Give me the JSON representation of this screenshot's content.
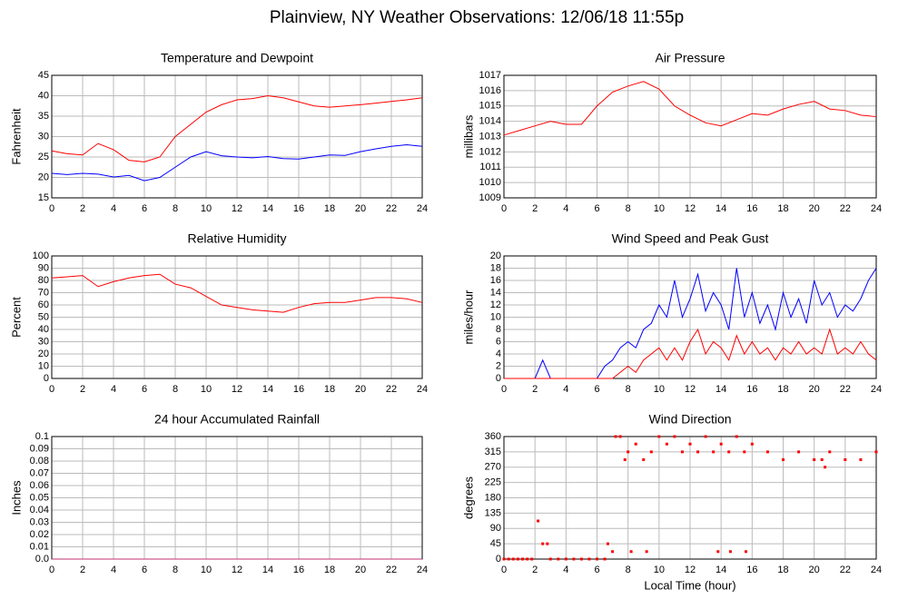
{
  "title": "Plainview, NY Weather Observations: 12/06/18 11:55p",
  "chart_data": [
    {
      "type": "line",
      "title": "Temperature and Dewpoint",
      "ylabel": "Fahrenheit",
      "x": [
        0,
        1,
        2,
        3,
        4,
        5,
        6,
        7,
        8,
        9,
        10,
        11,
        12,
        13,
        14,
        15,
        16,
        17,
        18,
        19,
        20,
        21,
        22,
        23,
        24
      ],
      "series": [
        {
          "name": "Temperature",
          "color": "#ff0000",
          "values": [
            26.5,
            25.8,
            25.5,
            28.3,
            26.8,
            24.2,
            23.8,
            25,
            30,
            33,
            36,
            37.8,
            39,
            39.3,
            40,
            39.5,
            38.5,
            37.5,
            37.2,
            37.5,
            37.8,
            38.2,
            38.6,
            39,
            39.5
          ]
        },
        {
          "name": "Dewpoint",
          "color": "#0000ff",
          "values": [
            21,
            20.7,
            21,
            20.8,
            20.1,
            20.5,
            19.2,
            20,
            22.5,
            25,
            26.3,
            25.3,
            25,
            24.8,
            25.1,
            24.6,
            24.5,
            25,
            25.5,
            25.4,
            26.3,
            27,
            27.6,
            28,
            27.6
          ]
        }
      ],
      "xlim": [
        0,
        24
      ],
      "xticks": [
        0,
        2,
        4,
        6,
        8,
        10,
        12,
        14,
        16,
        18,
        20,
        22,
        24
      ],
      "ylim": [
        15,
        45
      ],
      "yticks": [
        15,
        20,
        25,
        30,
        35,
        40,
        45
      ],
      "grid": true
    },
    {
      "type": "line",
      "title": "Air Pressure",
      "ylabel": "millibars",
      "x": [
        0,
        1,
        2,
        3,
        4,
        5,
        6,
        7,
        8,
        9,
        10,
        11,
        12,
        13,
        14,
        15,
        16,
        17,
        18,
        19,
        20,
        21,
        22,
        23,
        24
      ],
      "series": [
        {
          "name": "Pressure",
          "color": "#ff0000",
          "values": [
            1013.1,
            1013.4,
            1013.7,
            1014,
            1013.8,
            1013.8,
            1015,
            1015.9,
            1016.3,
            1016.6,
            1016.1,
            1015,
            1014.4,
            1013.9,
            1013.7,
            1014.1,
            1014.5,
            1014.4,
            1014.8,
            1015.1,
            1015.3,
            1014.8,
            1014.7,
            1014.4,
            1014.3
          ]
        }
      ],
      "xlim": [
        0,
        24
      ],
      "xticks": [
        0,
        2,
        4,
        6,
        8,
        10,
        12,
        14,
        16,
        18,
        20,
        22,
        24
      ],
      "ylim": [
        1009,
        1017
      ],
      "yticks": [
        1009,
        1010,
        1011,
        1012,
        1013,
        1014,
        1015,
        1016,
        1017
      ],
      "grid": true
    },
    {
      "type": "line",
      "title": "Relative Humidity",
      "ylabel": "Percent",
      "x": [
        0,
        1,
        2,
        3,
        4,
        5,
        6,
        7,
        8,
        9,
        10,
        11,
        12,
        13,
        14,
        15,
        16,
        17,
        18,
        19,
        20,
        21,
        22,
        23,
        24
      ],
      "series": [
        {
          "name": "Humidity",
          "color": "#ff0000",
          "values": [
            82,
            83,
            84,
            75,
            79,
            82,
            84,
            85,
            77,
            74,
            67,
            60,
            58,
            56,
            55,
            54,
            58,
            61,
            62,
            62,
            64,
            66,
            66,
            65,
            62
          ]
        }
      ],
      "xlim": [
        0,
        24
      ],
      "xticks": [
        0,
        2,
        4,
        6,
        8,
        10,
        12,
        14,
        16,
        18,
        20,
        22,
        24
      ],
      "ylim": [
        0,
        100
      ],
      "yticks": [
        0,
        10,
        20,
        30,
        40,
        50,
        60,
        70,
        80,
        90,
        100
      ],
      "grid": true
    },
    {
      "type": "line",
      "title": "Wind Speed and Peak Gust",
      "ylabel": "miles/hour",
      "x": [
        0,
        0.5,
        1,
        1.5,
        2,
        2.5,
        3,
        3.5,
        4,
        4.5,
        5,
        5.5,
        6,
        6.5,
        7,
        7.5,
        8,
        8.5,
        9,
        9.5,
        10,
        10.5,
        11,
        11.5,
        12,
        12.5,
        13,
        13.5,
        14,
        14.5,
        15,
        15.5,
        16,
        16.5,
        17,
        17.5,
        18,
        18.5,
        19,
        19.5,
        20,
        20.5,
        21,
        21.5,
        22,
        22.5,
        23,
        23.5,
        24
      ],
      "series": [
        {
          "name": "Peak Gust",
          "color": "#0000ff",
          "values": [
            0,
            0,
            0,
            0,
            0,
            3,
            0,
            0,
            0,
            0,
            0,
            0,
            0,
            2,
            3,
            5,
            6,
            5,
            8,
            9,
            12,
            10,
            16,
            10,
            13,
            17,
            11,
            14,
            12,
            8,
            18,
            10,
            14,
            9,
            12,
            8,
            14,
            10,
            13,
            9,
            16,
            12,
            14,
            10,
            12,
            11,
            13,
            16,
            18
          ]
        },
        {
          "name": "Wind Speed",
          "color": "#ff0000",
          "values": [
            0,
            0,
            0,
            0,
            0,
            0,
            0,
            0,
            0,
            0,
            0,
            0,
            0,
            0,
            0,
            1,
            2,
            1,
            3,
            4,
            5,
            3,
            5,
            3,
            6,
            8,
            4,
            6,
            5,
            3,
            7,
            4,
            6,
            4,
            5,
            3,
            5,
            4,
            6,
            4,
            5,
            4,
            8,
            4,
            5,
            4,
            6,
            4,
            3
          ]
        }
      ],
      "xlim": [
        0,
        24
      ],
      "xticks": [
        0,
        2,
        4,
        6,
        8,
        10,
        12,
        14,
        16,
        18,
        20,
        22,
        24
      ],
      "ylim": [
        0,
        20
      ],
      "yticks": [
        0,
        2,
        4,
        6,
        8,
        10,
        12,
        14,
        16,
        18,
        20
      ],
      "grid": true
    },
    {
      "type": "line",
      "title": "24 hour Accumulated Rainfall",
      "ylabel": "Inches",
      "x": [
        0,
        24
      ],
      "series": [
        {
          "name": "Rainfall",
          "color": "#c03070",
          "values": [
            0,
            0
          ]
        }
      ],
      "xlim": [
        0,
        24
      ],
      "xticks": [
        0,
        2,
        4,
        6,
        8,
        10,
        12,
        14,
        16,
        18,
        20,
        22,
        24
      ],
      "ylim": [
        0,
        0.1
      ],
      "yticks": [
        {
          "value": 0,
          "label": "0.0"
        },
        0.01,
        0.02,
        0.03,
        0.04,
        0.05,
        0.06,
        0.07,
        0.08,
        0.09,
        0.1
      ],
      "grid": true
    },
    {
      "type": "scatter",
      "title": "Wind Direction",
      "ylabel": "degrees",
      "xlabel": "Local Time (hour)",
      "color": "#ff0000",
      "x": [
        0,
        0.3,
        0.6,
        0.9,
        1.2,
        1.5,
        1.8,
        2.2,
        2.5,
        2.8,
        3,
        3.5,
        4,
        4.5,
        5,
        5.5,
        6,
        6.5,
        6.7,
        7,
        7.2,
        7.5,
        7.8,
        8,
        8.2,
        8.5,
        9,
        9.2,
        9.5,
        10,
        10.5,
        11,
        11.5,
        12,
        12.5,
        13,
        13.5,
        13.8,
        14,
        14.5,
        14.6,
        15,
        15.5,
        15.6,
        16,
        17,
        18,
        19,
        20,
        20.5,
        20.7,
        21,
        22,
        23,
        24
      ],
      "values": [
        0,
        0,
        0,
        0,
        0,
        0,
        0,
        112,
        45,
        45,
        0,
        0,
        0,
        0,
        0,
        0,
        0,
        0,
        45,
        22,
        360,
        360,
        292,
        315,
        22,
        338,
        292,
        22,
        315,
        360,
        338,
        360,
        315,
        338,
        315,
        360,
        315,
        22,
        338,
        315,
        22,
        360,
        315,
        22,
        338,
        315,
        292,
        315,
        292,
        292,
        270,
        315,
        292,
        292,
        315
      ],
      "xlim": [
        0,
        24
      ],
      "xticks": [
        0,
        2,
        4,
        6,
        8,
        10,
        12,
        14,
        16,
        18,
        20,
        22,
        24
      ],
      "ylim": [
        0,
        360
      ],
      "yticks": [
        0,
        45,
        90,
        135,
        180,
        225,
        270,
        315,
        360
      ],
      "grid": true
    }
  ]
}
